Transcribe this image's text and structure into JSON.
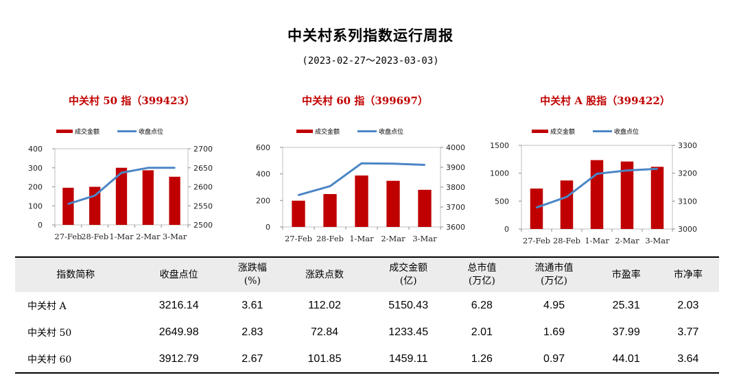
{
  "title": "中关村系列指数运行周报",
  "subtitle": "(2023-02-27～2023-03-03)",
  "legend": {
    "bar": "成交金额",
    "line": "收盘点位"
  },
  "colors": {
    "bar": "#c00000",
    "line": "#4a86c5",
    "title": "#c00000"
  },
  "chart_data": [
    {
      "type": "bar+line",
      "title": "中关村 50 指（399423）",
      "categories": [
        "27-Feb",
        "28-Feb",
        "1-Mar",
        "2-Mar",
        "3-Mar"
      ],
      "series": [
        {
          "name": "成交金额",
          "type": "bar",
          "axis": "left",
          "values": [
            195,
            200,
            300,
            287,
            253
          ]
        },
        {
          "name": "收盘点位",
          "type": "line",
          "axis": "right",
          "values": [
            2555,
            2577,
            2637,
            2650,
            2650
          ]
        }
      ],
      "ylim_left": [
        0,
        400
      ],
      "yticks_left": [
        0,
        100,
        200,
        300,
        400
      ],
      "ylim_right": [
        2500,
        2700
      ],
      "yticks_right": [
        2500,
        2550,
        2600,
        2650,
        2700
      ],
      "legend_position": "top"
    },
    {
      "type": "bar+line",
      "title": "中关村 60 指（399697）",
      "categories": [
        "27-Feb",
        "28-Feb",
        "1-Mar",
        "2-Mar",
        "3-Mar"
      ],
      "series": [
        {
          "name": "成交金额",
          "type": "bar",
          "axis": "left",
          "values": [
            198,
            248,
            388,
            348,
            280
          ]
        },
        {
          "name": "收盘点位",
          "type": "line",
          "axis": "right",
          "values": [
            3760,
            3805,
            3920,
            3918,
            3912
          ]
        }
      ],
      "ylim_left": [
        0,
        600
      ],
      "yticks_left": [
        0,
        200,
        400,
        600
      ],
      "ylim_right": [
        3600,
        4000
      ],
      "yticks_right": [
        3600,
        3700,
        3800,
        3900,
        4000
      ],
      "legend_position": "top"
    },
    {
      "type": "bar+line",
      "title": "中关村 A 股指（399422）",
      "categories": [
        "27-Feb",
        "28-Feb",
        "1-Mar",
        "2-Mar",
        "3-Mar"
      ],
      "series": [
        {
          "name": "成交金额",
          "type": "bar",
          "axis": "left",
          "values": [
            725,
            870,
            1235,
            1210,
            1115
          ]
        },
        {
          "name": "收盘点位",
          "type": "line",
          "axis": "right",
          "values": [
            3077,
            3115,
            3198,
            3210,
            3216
          ]
        }
      ],
      "ylim_left": [
        0,
        1500
      ],
      "yticks_left": [
        0,
        500,
        1000,
        1500
      ],
      "ylim_right": [
        3000,
        3300
      ],
      "yticks_right": [
        3000,
        3100,
        3200,
        3300
      ],
      "legend_position": "top"
    }
  ],
  "table": {
    "headers": [
      [
        "指数简称",
        ""
      ],
      [
        "收盘点位",
        ""
      ],
      [
        "涨跌幅",
        "(%)"
      ],
      [
        "涨跌点数",
        ""
      ],
      [
        "成交金额",
        "(亿)"
      ],
      [
        "总市值",
        "(万亿)"
      ],
      [
        "流通市值",
        "(万亿)"
      ],
      [
        "市盈率",
        ""
      ],
      [
        "市净率",
        ""
      ]
    ],
    "rows": [
      [
        "中关村 A",
        "3216.14",
        "3.61",
        "112.02",
        "5150.43",
        "6.28",
        "4.95",
        "25.31",
        "2.03"
      ],
      [
        "中关村 50",
        "2649.98",
        "2.83",
        "72.84",
        "1233.45",
        "2.01",
        "1.69",
        "37.99",
        "3.77"
      ],
      [
        "中关村 60",
        "3912.79",
        "2.67",
        "101.85",
        "1459.11",
        "1.26",
        "0.97",
        "44.01",
        "3.64"
      ]
    ]
  }
}
